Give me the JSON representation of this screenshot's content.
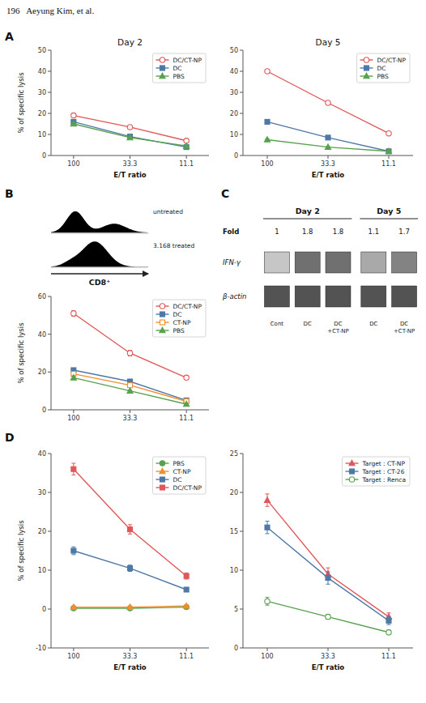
{
  "header": "196   Aeyung Kim, et al.",
  "panel_labels": [
    "A",
    "B",
    "C",
    "D"
  ],
  "chart_data": [
    {
      "type": "line",
      "title": "Day 2",
      "categories": [
        "100",
        "33.3",
        "11.1"
      ],
      "series": [
        {
          "name": "DC/CT-NP",
          "values": [
            19,
            13.5,
            7
          ],
          "errors": [
            1.0,
            0.5,
            0.5
          ],
          "marker": "open-circle",
          "color": "#e15759"
        },
        {
          "name": "DC",
          "values": [
            16,
            9,
            4
          ],
          "errors": [
            0.5,
            0.5,
            0.3
          ],
          "marker": "filled-square",
          "color": "#4e79a7"
        },
        {
          "name": "PBS",
          "values": [
            15,
            8.5,
            4.5
          ],
          "errors": [
            0.5,
            0.3,
            0.3
          ],
          "marker": "filled-triangle",
          "color": "#59a14f"
        }
      ],
      "ylim": [
        0,
        50
      ],
      "yticks": [
        0,
        10,
        20,
        30,
        40,
        50
      ],
      "ylabel": "% of specific lysis",
      "xlabel": "E/T ratio",
      "legend": "upper right",
      "grid": false
    },
    {
      "type": "line",
      "title": "Day 5",
      "categories": [
        "100",
        "33.3",
        "11.1"
      ],
      "series": [
        {
          "name": "DC/CT-NP",
          "values": [
            40,
            25,
            10.5
          ],
          "errors": [
            0.5,
            0.5,
            0.5
          ],
          "marker": "open-circle",
          "color": "#e15759"
        },
        {
          "name": "DC",
          "values": [
            16,
            8.5,
            2
          ],
          "errors": [
            0.5,
            0.3,
            0.3
          ],
          "marker": "filled-square",
          "color": "#4e79a7"
        },
        {
          "name": "PBS",
          "values": [
            7.5,
            4,
            2
          ],
          "errors": [
            0.5,
            0.3,
            0.3
          ],
          "marker": "filled-triangle",
          "color": "#59a14f"
        }
      ],
      "ylim": [
        0,
        50
      ],
      "yticks": [
        0,
        10,
        20,
        30,
        40,
        50
      ],
      "xlabel": "E/T ratio",
      "legend": "upper right",
      "grid": false
    },
    {
      "type": "density",
      "xlabel": "CD8⁺",
      "xlim": [
        0,
        10
      ],
      "series": [
        {
          "name": "untreated",
          "ylim": [
            -0.02,
            0.85
          ],
          "color": "black",
          "components": [
            {
              "mean": 2.5,
              "sd": 0.9,
              "height": 0.6
            },
            {
              "mean": 6.5,
              "sd": 1.2,
              "height": 0.25
            }
          ]
        },
        {
          "name": "3.168 treated",
          "ylim": [
            -0.02,
            1.2
          ],
          "color": "black",
          "components": [
            {
              "mean": 4.5,
              "sd": 1.3,
              "height": 1.0
            },
            {
              "mean": 2.0,
              "sd": 0.8,
              "height": 0.15
            }
          ]
        }
      ]
    },
    {
      "type": "line",
      "categories": [
        "100",
        "33.3",
        "11.1"
      ],
      "series": [
        {
          "name": "DC/CT-NP",
          "values": [
            51,
            30,
            17
          ],
          "errors": [
            1.5,
            1.5,
            1.0
          ],
          "marker": "open-circle",
          "color": "#e15759"
        },
        {
          "name": "DC",
          "values": [
            21,
            15,
            5
          ],
          "errors": [
            1.0,
            1.0,
            0.5
          ],
          "marker": "filled-square",
          "color": "#4e79a7"
        },
        {
          "name": "CT-NP",
          "values": [
            19,
            13,
            4.5
          ],
          "errors": [
            1.0,
            1.0,
            0.5
          ],
          "marker": "open-square",
          "color": "#f28e2b"
        },
        {
          "name": "PBS",
          "values": [
            17,
            10,
            3
          ],
          "errors": [
            1.0,
            0.5,
            0.3
          ],
          "marker": "filled-triangle",
          "color": "#59a14f"
        }
      ],
      "ylim": [
        0,
        60
      ],
      "yticks": [
        0,
        20,
        40,
        60
      ],
      "ylabel": "% of specific lysis",
      "legend": "upper right",
      "grid": false
    },
    {
      "type": "gel",
      "fold_label": "Fold",
      "groups": [
        {
          "name": "Day 2",
          "lanes": [
            "Cont",
            "DC",
            "DC\n+CT-NP"
          ],
          "fold": [
            1,
            1.8,
            1.8
          ]
        },
        {
          "name": "Day 5",
          "lanes": [
            "DC",
            "DC\n+CT-NP"
          ],
          "fold": [
            1.1,
            1.7
          ]
        }
      ],
      "series": [
        {
          "name": "IFN-γ",
          "values": [
            0.3,
            0.75,
            0.75,
            0.45,
            0.65
          ]
        },
        {
          "name": "β-actin",
          "values": [
            0.9,
            0.9,
            0.9,
            0.9,
            0.9
          ]
        }
      ]
    },
    {
      "type": "line",
      "categories": [
        "100",
        "33.3",
        "11.1"
      ],
      "series": [
        {
          "name": "PBS",
          "values": [
            0.2,
            0.2,
            0.5
          ],
          "errors": [
            0.3,
            0.3,
            0.3
          ],
          "marker": "filled-circle",
          "color": "#59a14f"
        },
        {
          "name": "CT-NP",
          "values": [
            0.5,
            0.5,
            0.8
          ],
          "errors": [
            0.3,
            0.3,
            0.3
          ],
          "marker": "filled-triangle",
          "color": "#f28e2b"
        },
        {
          "name": "DC",
          "values": [
            15,
            10.5,
            5
          ],
          "errors": [
            1.0,
            0.8,
            0.5
          ],
          "marker": "filled-square",
          "color": "#4e79a7"
        },
        {
          "name": "DC/CT-NP",
          "values": [
            36,
            20.5,
            8.5
          ],
          "errors": [
            1.5,
            1.2,
            0.8
          ],
          "marker": "filled-square",
          "color": "#e15759"
        }
      ],
      "ylim": [
        -10,
        40
      ],
      "yticks": [
        -10,
        0,
        10,
        20,
        30,
        40
      ],
      "ylabel": "% of specific lysis",
      "xlabel": "E/T ratio",
      "legend": "upper right",
      "grid": false
    },
    {
      "type": "line",
      "categories": [
        "100",
        "33.3",
        "11.1"
      ],
      "series": [
        {
          "name": "Target : CT-NP",
          "values": [
            19,
            9.5,
            4
          ],
          "errors": [
            0.8,
            0.8,
            0.5
          ],
          "marker": "filled-triangle",
          "color": "#e15759"
        },
        {
          "name": "Target : CT-26",
          "values": [
            15.5,
            9,
            3.5
          ],
          "errors": [
            0.8,
            0.8,
            0.5
          ],
          "marker": "filled-square",
          "color": "#4e79a7"
        },
        {
          "name": "Target : Renca",
          "values": [
            6,
            4,
            2
          ],
          "errors": [
            0.5,
            0.3,
            0.3
          ],
          "marker": "open-circle",
          "color": "#59a14f"
        }
      ],
      "ylim": [
        0,
        25
      ],
      "yticks": [
        0,
        5,
        10,
        15,
        20,
        25
      ],
      "xlabel": "E/T ratio",
      "legend": "upper right",
      "grid": false
    }
  ]
}
